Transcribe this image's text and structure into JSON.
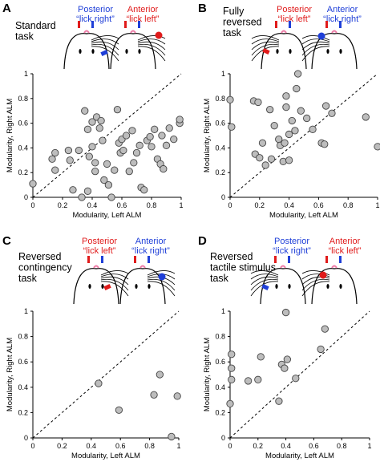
{
  "colors": {
    "posterior_blue": "#1f3fd8",
    "anterior_red": "#e01b1b",
    "point_fill": "#bdbdbd",
    "point_stroke": "#444444"
  },
  "panels": [
    {
      "letter": "A",
      "title_lines": [
        "Standard",
        "task"
      ],
      "captions": [
        {
          "line1": "Posterior",
          "line2": "“lick right”",
          "color": "#1f3fd8"
        },
        {
          "line1": "Anterior",
          "line2": "“lick left”",
          "color": "#e01b1b"
        }
      ]
    },
    {
      "letter": "B",
      "title_lines": [
        "Fully",
        "reversed",
        "task"
      ],
      "captions": [
        {
          "line1": "Posterior",
          "line2": "“lick left”",
          "color": "#e01b1b"
        },
        {
          "line1": "Anterior",
          "line2": "“lick right”",
          "color": "#1f3fd8"
        }
      ]
    },
    {
      "letter": "C",
      "title_lines": [
        "Reversed",
        "contingency",
        "task"
      ],
      "captions": [
        {
          "line1": "Posterior",
          "line2": "“lick left”",
          "color": "#e01b1b"
        },
        {
          "line1": "Anterior",
          "line2": "“lick right”",
          "color": "#1f3fd8"
        }
      ]
    },
    {
      "letter": "D",
      "title_lines": [
        "Reversed",
        "tactile stimulus",
        "task"
      ],
      "captions": [
        {
          "line1": "Posterior",
          "line2": "“lick right”",
          "color": "#1f3fd8"
        },
        {
          "line1": "Anterior",
          "line2": "“lick left”",
          "color": "#e01b1b"
        }
      ]
    }
  ],
  "chart_data": [
    {
      "type": "scatter",
      "panel": "A",
      "xlabel": "Modularity, Left ALM",
      "ylabel": "Modularity, Right ALM",
      "xlim": [
        0,
        1
      ],
      "ylim": [
        0,
        1
      ],
      "xticks": [
        "0",
        "0.2",
        "0.4",
        "0.6",
        "0.8",
        "1"
      ],
      "yticks": [
        "0",
        "0.2",
        "0.4",
        "0.6",
        "0.8",
        "1"
      ],
      "diagonal": true,
      "x": [
        0.0,
        0.13,
        0.15,
        0.15,
        0.24,
        0.25,
        0.27,
        0.31,
        0.33,
        0.35,
        0.37,
        0.37,
        0.38,
        0.4,
        0.4,
        0.42,
        0.42,
        0.43,
        0.45,
        0.46,
        0.47,
        0.48,
        0.5,
        0.51,
        0.53,
        0.55,
        0.57,
        0.58,
        0.59,
        0.6,
        0.61,
        0.63,
        0.65,
        0.67,
        0.68,
        0.7,
        0.72,
        0.73,
        0.75,
        0.77,
        0.79,
        0.8,
        0.82,
        0.84,
        0.86,
        0.87,
        0.88,
        0.9,
        0.92,
        0.95,
        0.99,
        0.99
      ],
      "y": [
        0.11,
        0.31,
        0.22,
        0.36,
        0.38,
        0.3,
        0.06,
        0.38,
        0.0,
        0.7,
        0.55,
        0.05,
        0.33,
        0.41,
        0.61,
        0.28,
        0.21,
        0.65,
        0.56,
        0.62,
        0.46,
        0.14,
        0.27,
        0.1,
        0.0,
        0.22,
        0.71,
        0.44,
        0.36,
        0.47,
        0.38,
        0.5,
        0.21,
        0.54,
        0.28,
        0.36,
        0.42,
        0.08,
        0.06,
        0.46,
        0.49,
        0.41,
        0.55,
        0.31,
        0.27,
        0.5,
        0.23,
        0.42,
        0.56,
        0.47,
        0.6,
        0.63
      ]
    },
    {
      "type": "scatter",
      "panel": "B",
      "xlabel": "Modularity, Left ALM",
      "ylabel": "Modularity, Right ALM",
      "xlim": [
        0,
        1
      ],
      "ylim": [
        0,
        1
      ],
      "xticks": [
        "0",
        "0.2",
        "0.4",
        "0.6",
        "0.8",
        "1"
      ],
      "yticks": [
        "0",
        "0.2",
        "0.4",
        "0.6",
        "0.8",
        "1"
      ],
      "diagonal": true,
      "x": [
        0.0,
        0.01,
        0.16,
        0.17,
        0.19,
        0.2,
        0.22,
        0.24,
        0.27,
        0.28,
        0.3,
        0.33,
        0.34,
        0.36,
        0.37,
        0.38,
        0.38,
        0.4,
        0.4,
        0.42,
        0.44,
        0.45,
        0.46,
        0.48,
        0.52,
        0.56,
        0.62,
        0.64,
        0.65,
        0.69,
        0.92,
        1.0
      ],
      "y": [
        0.79,
        0.57,
        0.78,
        0.35,
        0.77,
        0.32,
        0.44,
        0.26,
        0.71,
        0.31,
        0.58,
        0.47,
        0.42,
        0.29,
        0.44,
        0.82,
        0.73,
        0.51,
        0.3,
        0.62,
        0.54,
        0.88,
        1.0,
        0.7,
        0.64,
        0.55,
        0.44,
        0.43,
        0.74,
        0.68,
        0.65,
        0.41
      ]
    },
    {
      "type": "scatter",
      "panel": "C",
      "xlabel": "Modularity, Left ALM",
      "ylabel": "Modularity, Right ALM",
      "xlim": [
        0,
        1
      ],
      "ylim": [
        0,
        1
      ],
      "xticks": [
        "0",
        "0.2",
        "0.4",
        "0.6",
        "0.8",
        "1"
      ],
      "yticks": [
        "0",
        "0.2",
        "0.4",
        "0.6",
        "0.8",
        "1"
      ],
      "diagonal": true,
      "x": [
        0.45,
        0.59,
        0.83,
        0.87,
        0.95,
        0.99
      ],
      "y": [
        0.43,
        0.22,
        0.34,
        0.5,
        0.01,
        0.33
      ]
    },
    {
      "type": "scatter",
      "panel": "D",
      "xlabel": "Modularity, Left ALM",
      "ylabel": "Modularity, Right ALM",
      "xlim": [
        0,
        1
      ],
      "ylim": [
        0,
        1
      ],
      "xticks": [
        "0",
        "0.2",
        "0.4",
        "0.6",
        "0.8",
        "1"
      ],
      "yticks": [
        "0",
        "0.2",
        "0.4",
        "0.6",
        "0.8",
        "1"
      ],
      "diagonal": true,
      "x": [
        0.0,
        0.01,
        0.01,
        0.01,
        0.13,
        0.2,
        0.22,
        0.35,
        0.37,
        0.39,
        0.4,
        0.41,
        0.47,
        0.65,
        0.68
      ],
      "y": [
        0.27,
        0.46,
        0.55,
        0.66,
        0.45,
        0.46,
        0.64,
        0.29,
        0.58,
        0.55,
        0.99,
        0.62,
        0.47,
        0.7,
        0.86
      ]
    }
  ]
}
